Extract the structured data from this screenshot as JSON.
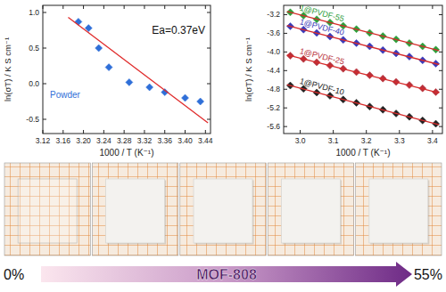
{
  "chart_data": [
    {
      "type": "scatter",
      "x_label": "1000 / T (K⁻¹)",
      "y_label": "ln(σT) / K S cm⁻¹",
      "annotations": [
        "Ea=0.37eV",
        "Powder"
      ],
      "xlim": [
        3.12,
        3.45
      ],
      "ylim": [
        -0.7,
        1.1
      ],
      "xticks": [
        3.12,
        3.16,
        {
          "value": 3.2,
          "label": "3.20"
        },
        3.24,
        3.28,
        3.32,
        3.36,
        {
          "value": 3.4,
          "label": "3.40"
        },
        3.44
      ],
      "yticks": [
        -0.5,
        {
          "value": 0,
          "label": "0.0"
        },
        0.5,
        {
          "value": 1,
          "label": "1.0"
        }
      ],
      "series": [
        {
          "type": "scatter",
          "color": "#2f6fd8",
          "marker": "diamond",
          "x": [
            3.19,
            3.21,
            3.23,
            3.25,
            3.29,
            3.33,
            3.36,
            3.4,
            3.43
          ],
          "values": [
            0.87,
            0.78,
            0.5,
            0.23,
            0.02,
            -0.05,
            -0.12,
            -0.2,
            -0.25
          ]
        },
        {
          "type": "line",
          "color": "#e02a2a",
          "line_style": "solid",
          "x": [
            3.17,
            3.445
          ],
          "values": [
            0.93,
            -0.55
          ]
        }
      ]
    },
    {
      "type": "scatter",
      "x_label": "1000 / T (K⁻¹)",
      "y_label": "ln(σT) / K S cm⁻¹",
      "xlim": [
        2.95,
        3.43
      ],
      "ylim": [
        -5.75,
        -3.0
      ],
      "xticks": [
        {
          "value": 3,
          "label": "3.0"
        },
        3.1,
        3.2,
        3.3,
        3.4
      ],
      "yticks": [
        -5.6,
        -5.2,
        -4.8,
        -4.4,
        {
          "value": -4,
          "label": "-4.0"
        },
        -3.6,
        -3.2
      ],
      "series": [
        {
          "name": "1@PVDF-55",
          "type": "scatter",
          "color": "#2e9e3a",
          "marker": "diamond",
          "x": [
            2.97,
            3.01,
            3.05,
            3.09,
            3.13,
            3.17,
            3.21,
            3.25,
            3.29,
            3.33,
            3.37,
            3.41
          ],
          "values": [
            -3.15,
            -3.22,
            -3.3,
            -3.37,
            -3.44,
            -3.51,
            -3.59,
            -3.66,
            -3.73,
            -3.81,
            -3.88,
            -3.95
          ]
        },
        {
          "name": "1@PVDF-40",
          "type": "scatter",
          "color": "#3a3ab8",
          "marker": "diamond",
          "x": [
            2.97,
            3.01,
            3.05,
            3.09,
            3.13,
            3.17,
            3.21,
            3.25,
            3.29,
            3.33,
            3.37,
            3.41
          ],
          "values": [
            -3.45,
            -3.52,
            -3.59,
            -3.67,
            -3.74,
            -3.81,
            -3.88,
            -3.96,
            -4.03,
            -4.1,
            -4.18,
            -4.25
          ]
        },
        {
          "name": "1@PVDF-25",
          "type": "scatter",
          "color": "#b8303a",
          "marker": "diamond",
          "x": [
            2.97,
            3.01,
            3.05,
            3.09,
            3.13,
            3.17,
            3.21,
            3.25,
            3.29,
            3.33,
            3.37,
            3.41
          ],
          "values": [
            -4.08,
            -4.15,
            -4.22,
            -4.29,
            -4.36,
            -4.43,
            -4.5,
            -4.57,
            -4.64,
            -4.71,
            -4.78,
            -4.86
          ]
        },
        {
          "name": "1@PVDF-10",
          "type": "scatter",
          "color": "#222222",
          "marker": "diamond",
          "x": [
            2.97,
            3.01,
            3.05,
            3.09,
            3.13,
            3.17,
            3.21,
            3.25,
            3.29,
            3.33,
            3.37,
            3.41
          ],
          "values": [
            -4.72,
            -4.79,
            -4.87,
            -4.94,
            -5.02,
            -5.09,
            -5.17,
            -5.24,
            -5.32,
            -5.39,
            -5.47,
            -5.54
          ]
        },
        {
          "type": "line",
          "color": "#d62b2b",
          "line_style": "solid",
          "x": [
            2.96,
            3.42
          ],
          "values": [
            -3.13,
            -3.97
          ]
        },
        {
          "type": "line",
          "color": "#d62b2b",
          "line_style": "solid",
          "x": [
            2.96,
            3.42
          ],
          "values": [
            -3.43,
            -4.27
          ]
        },
        {
          "type": "line",
          "color": "#d62b2b",
          "line_style": "solid",
          "x": [
            2.96,
            3.42
          ],
          "values": [
            -4.06,
            -4.88
          ]
        },
        {
          "type": "line",
          "color": "#d62b2b",
          "line_style": "solid",
          "x": [
            2.96,
            3.42
          ],
          "values": [
            -4.7,
            -5.56
          ]
        }
      ]
    }
  ],
  "photo_strip": {
    "panels": 5,
    "start_label": "0%",
    "arrow_label": "MOF-808",
    "end_label": "55%"
  }
}
